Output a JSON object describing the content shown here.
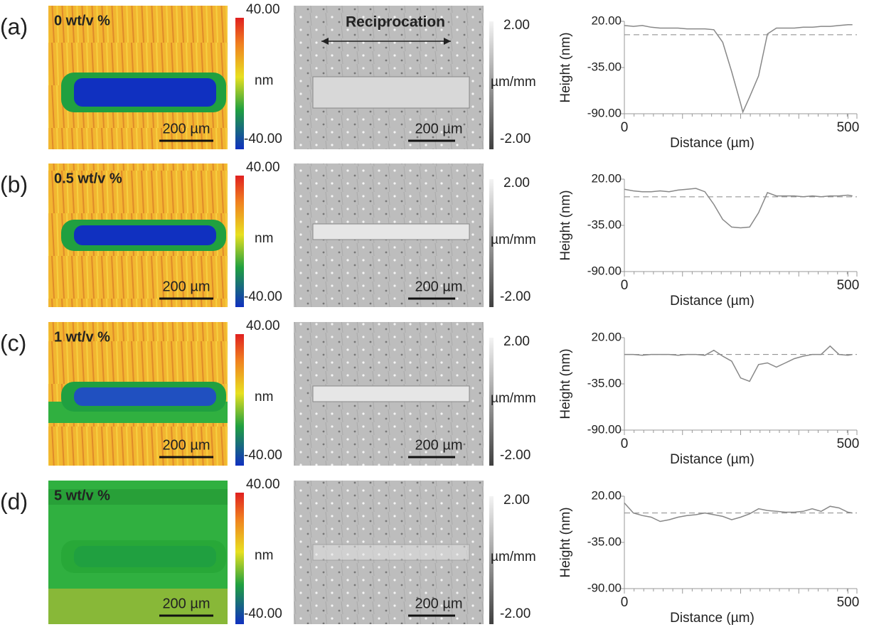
{
  "panels": [
    {
      "label": "(a)",
      "sample": "0 wt/v %",
      "height_map": {
        "scale_bar": "200 µm",
        "colorbar": {
          "max": "40.00",
          "unit": "nm",
          "min": "-40.00"
        }
      },
      "gradient_map": {
        "annotation": "Reciprocation",
        "scale_bar": "200 µm",
        "colorbar": {
          "max": "2.00",
          "unit": "µm/mm",
          "min": "-2.00"
        }
      }
    },
    {
      "label": "(b)",
      "sample": "0.5 wt/v %",
      "height_map": {
        "scale_bar": "200 µm",
        "colorbar": {
          "max": "40.00",
          "unit": "nm",
          "min": "-40.00"
        }
      },
      "gradient_map": {
        "scale_bar": "200 µm",
        "colorbar": {
          "max": "2.00",
          "unit": "µm/mm",
          "min": "-2.00"
        }
      }
    },
    {
      "label": "(c)",
      "sample": "1 wt/v %",
      "height_map": {
        "scale_bar": "200 µm",
        "colorbar": {
          "max": "40.00",
          "unit": "nm",
          "min": "-40.00"
        }
      },
      "gradient_map": {
        "scale_bar": "200 µm",
        "colorbar": {
          "max": "2.00",
          "unit": "µm/mm",
          "min": "-2.00"
        }
      }
    },
    {
      "label": "(d)",
      "sample": "5 wt/v %",
      "height_map": {
        "scale_bar": "200 µm",
        "colorbar": {
          "max": "40.00",
          "unit": "nm",
          "min": "-40.00"
        }
      },
      "gradient_map": {
        "scale_bar": "200 µm",
        "colorbar": {
          "max": "2.00",
          "unit": "µm/mm",
          "min": "-2.00"
        }
      }
    }
  ],
  "chart_data": [
    {
      "type": "line",
      "x_label": "Distance (µm)",
      "y_label": "Height (nm)",
      "color": "#888888",
      "baseline": 4,
      "x": [
        0,
        20,
        40,
        60,
        80,
        100,
        120,
        140,
        160,
        180,
        200,
        220,
        240,
        260,
        265,
        280,
        300,
        320,
        340,
        360,
        380,
        400,
        420,
        440,
        460,
        480,
        500,
        510
      ],
      "values": [
        15,
        14,
        15,
        13,
        12,
        12,
        12,
        11,
        11,
        11,
        10,
        -5,
        -40,
        -78,
        -88,
        -70,
        -45,
        5,
        12,
        12,
        12,
        13,
        13,
        14,
        14,
        15,
        16,
        16
      ],
      "xlim": [
        0,
        520
      ],
      "ylim": [
        -90,
        20
      ],
      "xticks": [
        0,
        500
      ],
      "yticks": [
        {
          "value": 20,
          "label": "20.00"
        },
        {
          "value": -35,
          "label": "-35.00"
        },
        {
          "value": -90,
          "label": "-90.00"
        }
      ]
    },
    {
      "type": "line",
      "x_label": "Distance (µm)",
      "y_label": "Height (nm)",
      "color": "#888888",
      "baseline": -1,
      "x": [
        0,
        20,
        40,
        60,
        80,
        100,
        120,
        140,
        160,
        180,
        200,
        220,
        240,
        260,
        280,
        300,
        320,
        340,
        360,
        380,
        400,
        420,
        440,
        460,
        480,
        500,
        510
      ],
      "values": [
        8,
        6,
        5,
        5,
        6,
        5,
        7,
        8,
        9,
        5,
        -10,
        -28,
        -37,
        -38,
        -37,
        -20,
        4,
        0,
        0,
        0,
        -1,
        0,
        -1,
        0,
        0,
        1,
        0
      ],
      "xlim": [
        0,
        520
      ],
      "ylim": [
        -90,
        20
      ],
      "xticks": [
        0,
        500
      ],
      "yticks": [
        {
          "value": 20,
          "label": "20.00"
        },
        {
          "value": -35,
          "label": "-35.00"
        },
        {
          "value": -90,
          "label": "-90.00"
        }
      ]
    },
    {
      "type": "line",
      "x_label": "Distance (µm)",
      "y_label": "Height (nm)",
      "color": "#888888",
      "baseline": 0,
      "x": [
        0,
        20,
        40,
        60,
        80,
        100,
        120,
        140,
        160,
        180,
        200,
        220,
        240,
        260,
        280,
        300,
        320,
        340,
        360,
        380,
        400,
        420,
        440,
        460,
        480,
        500,
        510
      ],
      "values": [
        0,
        0,
        -1,
        0,
        0,
        0,
        -1,
        0,
        0,
        -1,
        5,
        -2,
        -8,
        -28,
        -32,
        -12,
        -10,
        -15,
        -10,
        -5,
        -2,
        0,
        0,
        10,
        0,
        -1,
        0
      ],
      "xlim": [
        0,
        520
      ],
      "ylim": [
        -90,
        20
      ],
      "xticks": [
        0,
        500
      ],
      "yticks": [
        {
          "value": 20,
          "label": "20.00"
        },
        {
          "value": -35,
          "label": "-35.00"
        },
        {
          "value": -90,
          "label": "-90.00"
        }
      ]
    },
    {
      "type": "line",
      "x_label": "Distance (µm)",
      "y_label": "Height (nm)",
      "color": "#888888",
      "baseline": 0,
      "x": [
        0,
        20,
        40,
        60,
        80,
        100,
        120,
        140,
        160,
        180,
        200,
        220,
        240,
        260,
        280,
        300,
        320,
        340,
        360,
        380,
        400,
        420,
        440,
        460,
        480,
        500,
        510
      ],
      "values": [
        12,
        0,
        -3,
        -5,
        -10,
        -8,
        -5,
        -3,
        -2,
        0,
        -2,
        -4,
        -8,
        -5,
        -1,
        5,
        3,
        2,
        1,
        1,
        2,
        5,
        2,
        8,
        6,
        1,
        0
      ],
      "xlim": [
        0,
        520
      ],
      "ylim": [
        -90,
        20
      ],
      "xticks": [
        0,
        500
      ],
      "yticks": [
        {
          "value": 20,
          "label": "20.00"
        },
        {
          "value": -35,
          "label": "-35.00"
        },
        {
          "value": -90,
          "label": "-90.00"
        }
      ]
    }
  ]
}
